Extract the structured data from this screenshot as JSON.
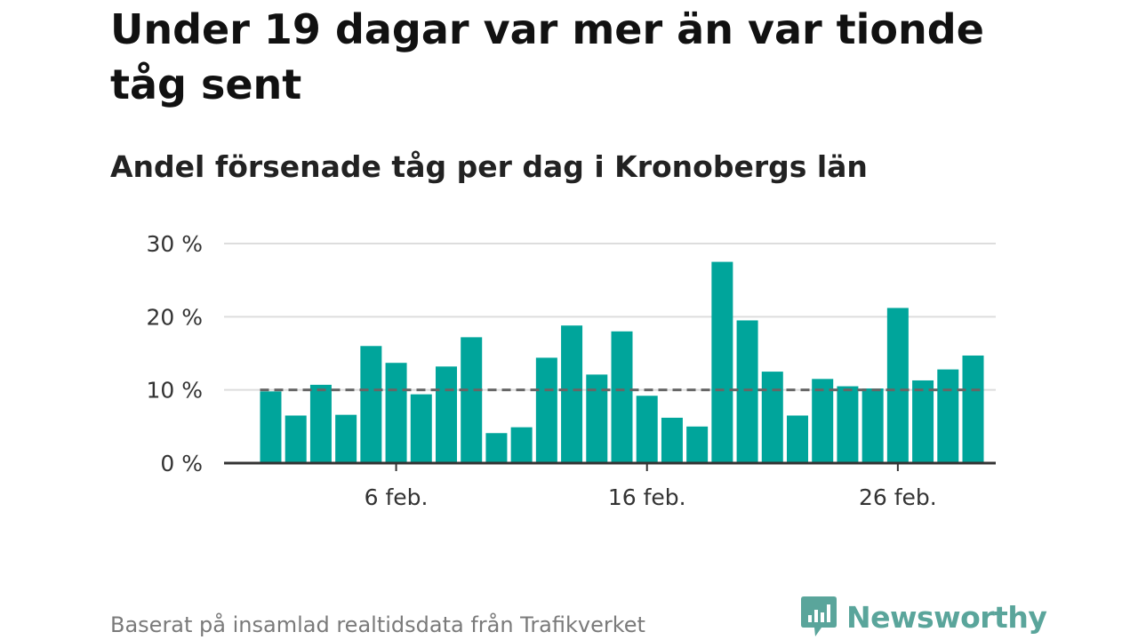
{
  "title": "Under 19 dagar var mer än var tionde tåg sent",
  "subtitle": "Andel försenade tåg per dag i Kronobergs län",
  "footer": "Baserat på insamlad realtidsdata från Trafikverket",
  "brand": {
    "name": "Newsworthy",
    "icon": "newsworthy-logo-icon",
    "color": "#5aa59b"
  },
  "colors": {
    "bar": "#00a59b",
    "grid": "#dddddd",
    "axis": "#333333",
    "reference": "#666666"
  },
  "chart_data": {
    "type": "bar",
    "x": [
      "2024-02-01",
      "2024-02-02",
      "2024-02-03",
      "2024-02-04",
      "2024-02-05",
      "2024-02-06",
      "2024-02-07",
      "2024-02-08",
      "2024-02-09",
      "2024-02-10",
      "2024-02-11",
      "2024-02-12",
      "2024-02-13",
      "2024-02-14",
      "2024-02-15",
      "2024-02-16",
      "2024-02-17",
      "2024-02-18",
      "2024-02-19",
      "2024-02-20",
      "2024-02-21",
      "2024-02-22",
      "2024-02-23",
      "2024-02-24",
      "2024-02-25",
      "2024-02-26",
      "2024-02-27",
      "2024-02-28",
      "2024-02-29"
    ],
    "values": [
      9.8,
      6.5,
      10.7,
      6.6,
      16.0,
      13.7,
      9.4,
      13.2,
      17.2,
      4.1,
      4.9,
      14.4,
      18.8,
      12.1,
      18.0,
      9.2,
      6.2,
      5.0,
      27.5,
      19.5,
      12.5,
      6.5,
      11.5,
      10.5,
      10.2,
      21.2,
      11.3,
      12.8,
      14.7
    ],
    "reference_line": 10,
    "ylim": [
      0,
      30
    ],
    "yticks": [
      {
        "value": 0,
        "label": "0 %"
      },
      {
        "value": 10,
        "label": "10 %"
      },
      {
        "value": 20,
        "label": "20 %"
      },
      {
        "value": 30,
        "label": "30 %"
      }
    ],
    "xticks": [
      {
        "index": 5,
        "label": "6 feb."
      },
      {
        "index": 15,
        "label": "16 feb."
      },
      {
        "index": 25,
        "label": "26 feb."
      }
    ],
    "grid": true,
    "legend": "none"
  }
}
